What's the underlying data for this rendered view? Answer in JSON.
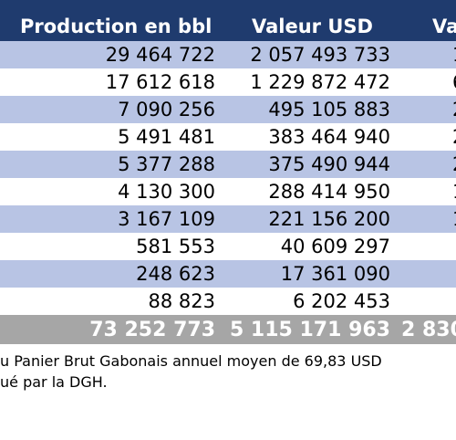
{
  "table": {
    "headers": [
      "Production en bbl",
      "Valeur USD",
      "Va"
    ],
    "rows": [
      [
        "29 464 722",
        "2 057 493 733",
        "1 1"
      ],
      [
        "17 612 618",
        "1 229 872 472",
        "6"
      ],
      [
        "7 090 256",
        "495 105 883",
        "2"
      ],
      [
        "5 491 481",
        "383 464 940",
        "2"
      ],
      [
        "5 377 288",
        "375 490 944",
        "2"
      ],
      [
        "4 130 300",
        "288 414 950",
        "1"
      ],
      [
        "3 167 109",
        "221 156 200",
        "1"
      ],
      [
        "581 553",
        "40 609 297",
        ""
      ],
      [
        "248 623",
        "17 361 090",
        ""
      ],
      [
        "88 823",
        "6 202 453",
        ""
      ]
    ],
    "total": [
      "73 252 773",
      "5 115 171 963",
      "2 830"
    ]
  },
  "note": {
    "line1": "u Panier Brut Gabonais annuel moyen de 69,83 USD",
    "line2": "ué par la DGH."
  }
}
